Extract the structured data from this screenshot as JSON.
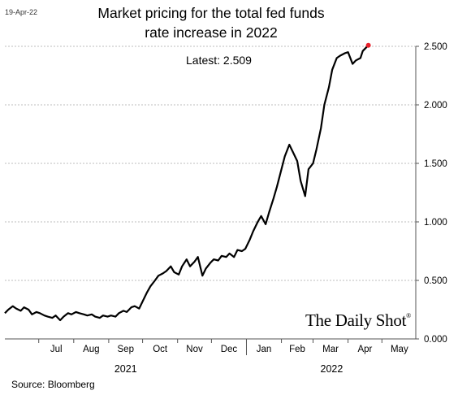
{
  "header": {
    "date_stamp": "19-Apr-22",
    "title_line1": "Market pricing for the total fed funds",
    "title_line2": "rate increase in 2022"
  },
  "annotation": {
    "latest": "Latest:  2.509"
  },
  "brand": {
    "name": "The Daily Shot",
    "mark": "®"
  },
  "footer": {
    "source": "Source: Bloomberg"
  },
  "colors": {
    "line": "#000000",
    "marker": "#e8202a",
    "grid": "#bdbdbd",
    "axis": "#555555"
  },
  "chart_data": {
    "type": "line",
    "title": "Market pricing for the total fed funds rate increase in 2022",
    "annotation": "Latest:  2.509",
    "last_point_marker": true,
    "y_axis_side": "right",
    "ylim": [
      0,
      2.5
    ],
    "yticks": [
      "0.000",
      "0.500",
      "1.000",
      "1.500",
      "2.000",
      "2.500"
    ],
    "yticks_values": [
      0,
      0.5,
      1.0,
      1.5,
      2.0,
      2.5
    ],
    "grid": "horizontal dashed",
    "x_month_ticks": [
      "Jul",
      "Aug",
      "Sep",
      "Oct",
      "Nov",
      "Dec",
      "Jan",
      "Feb",
      "Mar",
      "Apr",
      "May"
    ],
    "x_year_labels": [
      "2021",
      "2022"
    ],
    "x_start": "2021-06-01",
    "x_end": "2022-05-31",
    "series": [
      {
        "x": [
          "2021-06-01",
          "2021-06-04",
          "2021-06-08",
          "2021-06-11",
          "2021-06-15",
          "2021-06-18",
          "2021-06-22",
          "2021-06-25",
          "2021-06-29",
          "2021-07-02",
          "2021-07-06",
          "2021-07-09",
          "2021-07-13",
          "2021-07-16",
          "2021-07-20",
          "2021-07-23",
          "2021-07-27",
          "2021-07-30",
          "2021-08-03",
          "2021-08-06",
          "2021-08-10",
          "2021-08-13",
          "2021-08-17",
          "2021-08-20",
          "2021-08-24",
          "2021-08-27",
          "2021-08-31",
          "2021-09-03",
          "2021-09-07",
          "2021-09-10",
          "2021-09-14",
          "2021-09-17",
          "2021-09-21",
          "2021-09-24",
          "2021-09-28",
          "2021-10-01",
          "2021-10-05",
          "2021-10-08",
          "2021-10-12",
          "2021-10-15",
          "2021-10-19",
          "2021-10-22",
          "2021-10-26",
          "2021-10-29",
          "2021-11-02",
          "2021-11-05",
          "2021-11-09",
          "2021-11-12",
          "2021-11-16",
          "2021-11-19",
          "2021-11-23",
          "2021-11-26",
          "2021-11-30",
          "2021-12-03",
          "2021-12-07",
          "2021-12-10",
          "2021-12-14",
          "2021-12-17",
          "2021-12-21",
          "2021-12-24",
          "2021-12-28",
          "2021-12-31",
          "2022-01-04",
          "2022-01-07",
          "2022-01-11",
          "2022-01-14",
          "2022-01-18",
          "2022-01-21",
          "2022-01-25",
          "2022-01-28",
          "2022-02-01",
          "2022-02-04",
          "2022-02-08",
          "2022-02-11",
          "2022-02-15",
          "2022-02-18",
          "2022-02-22",
          "2022-02-25",
          "2022-03-01",
          "2022-03-04",
          "2022-03-08",
          "2022-03-11",
          "2022-03-15",
          "2022-03-18",
          "2022-03-22",
          "2022-03-25",
          "2022-03-29",
          "2022-04-01",
          "2022-04-05",
          "2022-04-08",
          "2022-04-12",
          "2022-04-14",
          "2022-04-19"
        ],
        "values": [
          0.22,
          0.25,
          0.28,
          0.26,
          0.24,
          0.27,
          0.25,
          0.21,
          0.23,
          0.22,
          0.2,
          0.19,
          0.18,
          0.2,
          0.16,
          0.19,
          0.22,
          0.21,
          0.23,
          0.22,
          0.21,
          0.2,
          0.21,
          0.19,
          0.18,
          0.2,
          0.19,
          0.2,
          0.19,
          0.22,
          0.24,
          0.23,
          0.27,
          0.28,
          0.26,
          0.32,
          0.4,
          0.45,
          0.5,
          0.54,
          0.56,
          0.58,
          0.62,
          0.57,
          0.55,
          0.62,
          0.68,
          0.62,
          0.66,
          0.7,
          0.54,
          0.6,
          0.65,
          0.68,
          0.67,
          0.71,
          0.7,
          0.73,
          0.7,
          0.76,
          0.75,
          0.77,
          0.85,
          0.92,
          1.0,
          1.05,
          0.98,
          1.08,
          1.2,
          1.3,
          1.45,
          1.56,
          1.66,
          1.6,
          1.52,
          1.35,
          1.22,
          1.45,
          1.5,
          1.62,
          1.8,
          2.0,
          2.15,
          2.3,
          2.4,
          2.42,
          2.44,
          2.45,
          2.35,
          2.38,
          2.4,
          2.46,
          2.509
        ]
      }
    ],
    "source": "Source: Bloomberg"
  }
}
